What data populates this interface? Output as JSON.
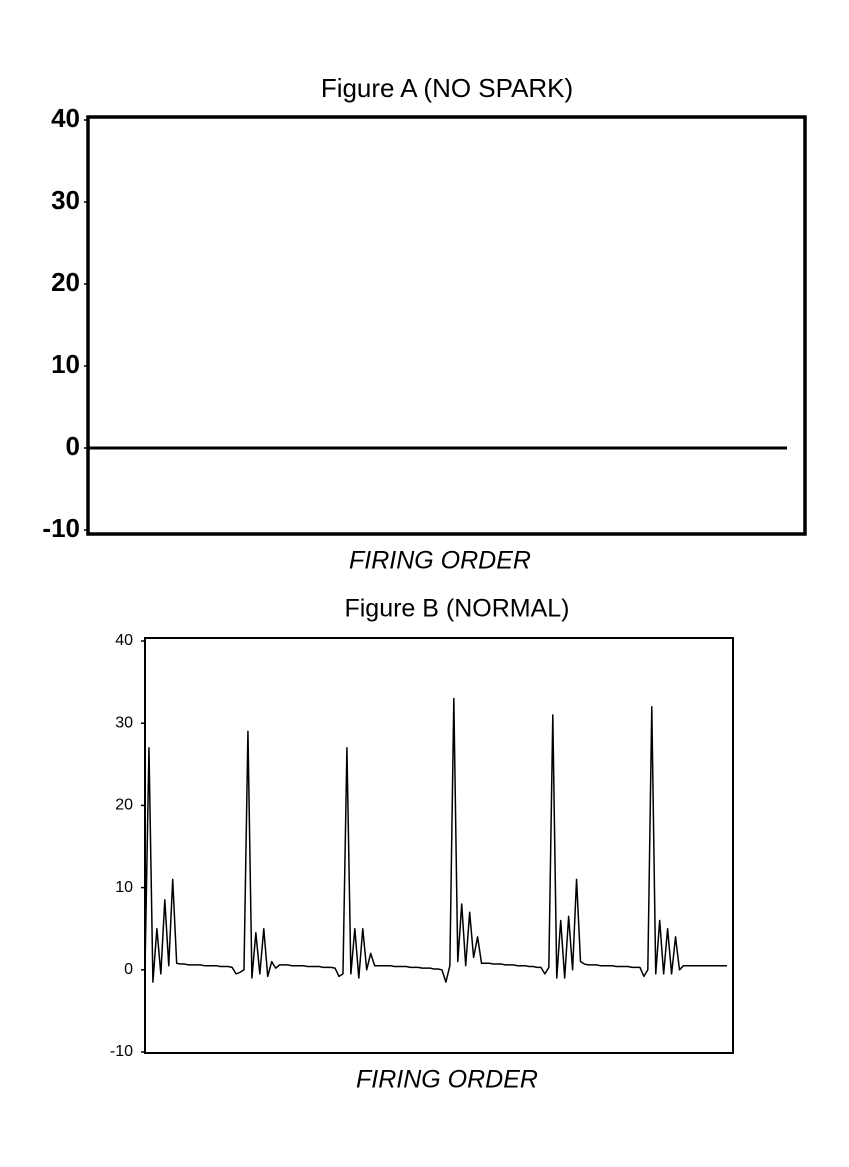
{
  "chart_data": [
    {
      "type": "line",
      "title": "Figure A (NO SPARK)",
      "xlabel": "FIRING ORDER",
      "color": "#000000",
      "values": [
        0,
        0
      ],
      "ylim": [
        -10,
        40
      ],
      "yticks": [
        -10,
        0,
        10,
        20,
        30,
        40
      ]
    },
    {
      "type": "line",
      "title": "Figure B (NORMAL)",
      "xlabel": "FIRING ORDER",
      "color": "#000000",
      "values": [
        0,
        27,
        -1.5,
        5,
        -0.5,
        8.5,
        0.5,
        11,
        0.8,
        0.7,
        0.7,
        0.6,
        0.6,
        0.6,
        0.6,
        0.5,
        0.5,
        0.5,
        0.5,
        0.4,
        0.4,
        0.4,
        0.3,
        -0.5,
        -0.3,
        0,
        29,
        -1,
        4.5,
        -0.5,
        5,
        -0.8,
        1,
        0.2,
        0.6,
        0.6,
        0.6,
        0.5,
        0.5,
        0.5,
        0.5,
        0.4,
        0.4,
        0.4,
        0.4,
        0.3,
        0.3,
        0.3,
        0.2,
        -0.8,
        -0.5,
        27,
        -0.5,
        5,
        -1,
        5,
        0,
        2,
        0.5,
        0.5,
        0.5,
        0.5,
        0.5,
        0.4,
        0.4,
        0.4,
        0.4,
        0.3,
        0.3,
        0.3,
        0.2,
        0.2,
        0.2,
        0.1,
        0.1,
        0,
        -1.5,
        0.5,
        33,
        1,
        8,
        0.5,
        7,
        1.5,
        4,
        0.8,
        0.8,
        0.8,
        0.7,
        0.7,
        0.7,
        0.6,
        0.6,
        0.6,
        0.5,
        0.5,
        0.5,
        0.4,
        0.4,
        0.3,
        0.3,
        -0.5,
        0.3,
        31,
        -1,
        6,
        -1,
        6.5,
        0,
        11,
        1,
        0.7,
        0.6,
        0.6,
        0.6,
        0.5,
        0.5,
        0.5,
        0.5,
        0.4,
        0.4,
        0.4,
        0.4,
        0.3,
        0.3,
        0.3,
        -0.8,
        0,
        32,
        -0.5,
        6,
        -0.5,
        5,
        -0.5,
        4,
        0,
        0.5,
        0.5,
        0.5,
        0.5,
        0.5,
        0.5,
        0.5,
        0.5,
        0.5,
        0.5,
        0.5,
        0.5
      ],
      "ylim": [
        -10,
        40
      ],
      "yticks": [
        -10,
        0,
        10,
        20,
        30,
        40
      ]
    }
  ]
}
